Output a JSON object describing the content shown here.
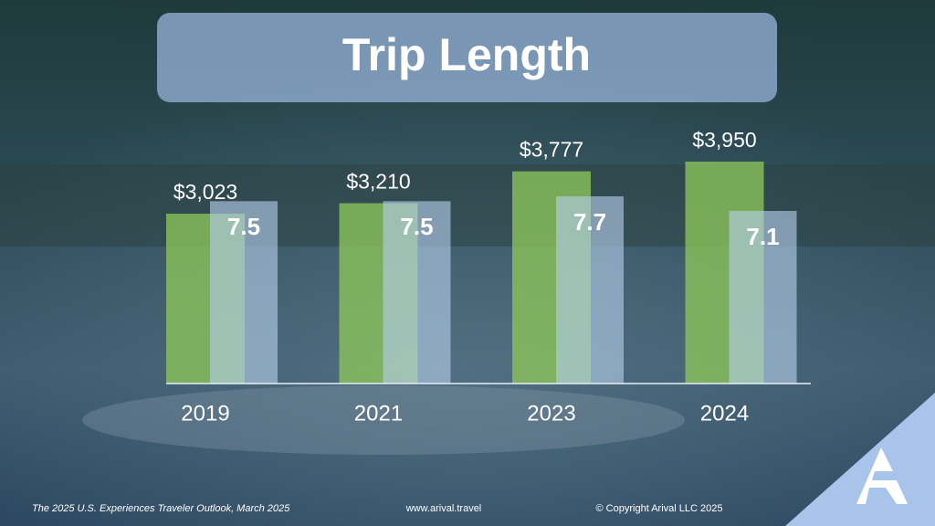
{
  "chart_data": {
    "type": "bar",
    "title": "Trip Length",
    "categories": [
      "2019",
      "2021",
      "2023",
      "2024"
    ],
    "series": [
      {
        "color": "#8cc55a",
        "values": [
          3023,
          3210,
          3777,
          3950
        ],
        "value_labels": [
          "$3,023",
          "$3,210",
          "$3,777",
          "$3,950"
        ]
      },
      {
        "color": "#b4cdea",
        "values": [
          7.5,
          7.5,
          7.7,
          7.1
        ]
      }
    ]
  },
  "footer": {
    "source": "The 2025 U.S. Experiences Traveler Outlook, March 2025",
    "website": "www.arival.travel",
    "copyright": "© Copyright Arival LLC 2025"
  }
}
